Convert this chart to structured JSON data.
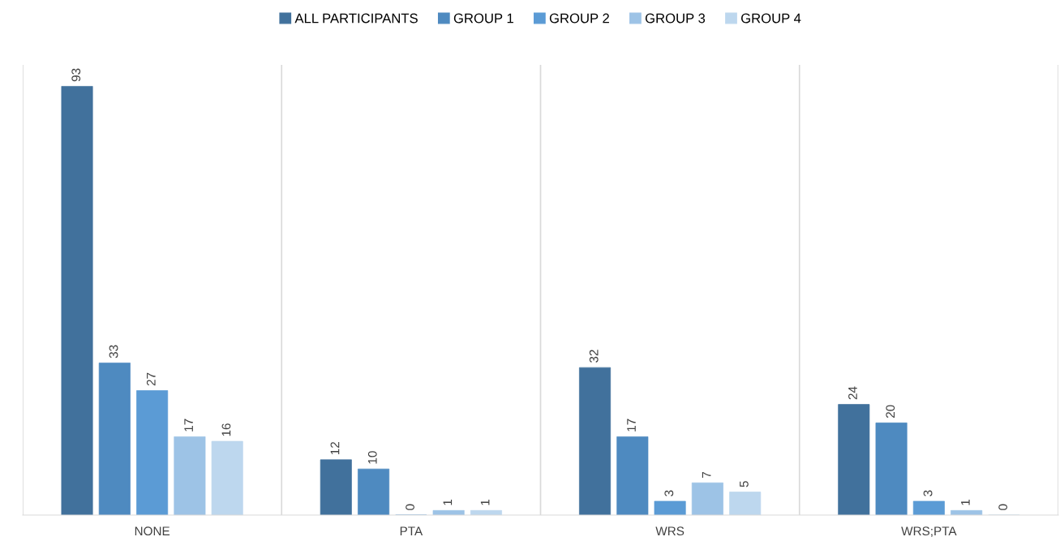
{
  "chart_data": {
    "type": "bar",
    "categories": [
      "NONE",
      "PTA",
      "WRS",
      "WRS;PTA"
    ],
    "series": [
      {
        "name": "ALL PARTICIPANTS",
        "color": "#41719c",
        "values": [
          93,
          12,
          32,
          24
        ]
      },
      {
        "name": "GROUP 1",
        "color": "#4e8ac0",
        "values": [
          33,
          10,
          17,
          20
        ]
      },
      {
        "name": "GROUP 2",
        "color": "#5b9bd5",
        "values": [
          27,
          0,
          3,
          3
        ]
      },
      {
        "name": "GROUP 3",
        "color": "#9dc3e6",
        "values": [
          17,
          1,
          7,
          1
        ]
      },
      {
        "name": "GROUP 4",
        "color": "#bdd7ee",
        "values": [
          16,
          1,
          5,
          0
        ]
      }
    ],
    "data_labels": true,
    "legend": "top",
    "grid": "x",
    "tick_labels": "x"
  }
}
